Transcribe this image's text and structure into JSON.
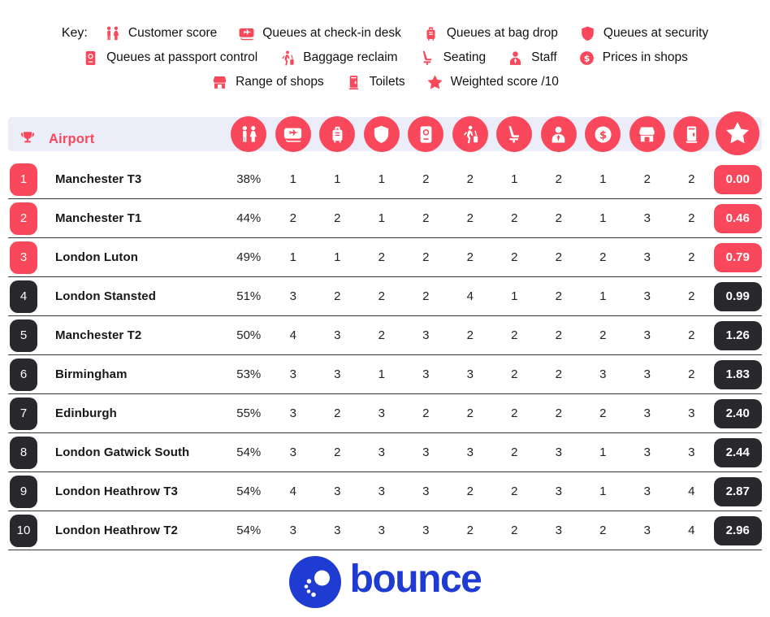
{
  "key": {
    "label": "Key:",
    "lines": [
      [
        {
          "icon": "people",
          "label": "Customer score"
        },
        {
          "icon": "boarding-pass",
          "label": "Queues at check-in desk"
        },
        {
          "icon": "suitcase",
          "label": "Queues at bag drop"
        },
        {
          "icon": "shield",
          "label": "Queues at security"
        }
      ],
      [
        {
          "icon": "passport",
          "label": "Queues at passport control"
        },
        {
          "icon": "baggage-reclaim",
          "label": "Baggage reclaim"
        },
        {
          "icon": "seat",
          "label": "Seating"
        },
        {
          "icon": "staff",
          "label": "Staff"
        },
        {
          "icon": "dollar-coin",
          "label": "Prices in shops"
        }
      ],
      [
        {
          "icon": "shop",
          "label": "Range of shops"
        },
        {
          "icon": "toilet",
          "label": "Toilets"
        },
        {
          "icon": "star",
          "label": "Weighted score /10"
        }
      ]
    ]
  },
  "table": {
    "airport_header": "Airport",
    "icon_columns": [
      "people",
      "boarding-pass",
      "suitcase",
      "shield",
      "passport",
      "baggage-reclaim",
      "seat",
      "staff",
      "dollar-coin",
      "shop",
      "toilet",
      "star"
    ],
    "rows": [
      {
        "rank": "1",
        "airport": "Manchester T3",
        "customer_score": "38%",
        "values": [
          1,
          1,
          1,
          2,
          2,
          1,
          2,
          1,
          2,
          2
        ],
        "weighted_score": "0.00",
        "highlight": true
      },
      {
        "rank": "2",
        "airport": "Manchester T1",
        "customer_score": "44%",
        "values": [
          2,
          2,
          1,
          2,
          2,
          2,
          2,
          1,
          3,
          2
        ],
        "weighted_score": "0.46",
        "highlight": true
      },
      {
        "rank": "3",
        "airport": "London Luton",
        "customer_score": "49%",
        "values": [
          1,
          1,
          2,
          2,
          2,
          2,
          2,
          2,
          3,
          2
        ],
        "weighted_score": "0.79",
        "highlight": true
      },
      {
        "rank": "4",
        "airport": "London Stansted",
        "customer_score": "51%",
        "values": [
          3,
          2,
          2,
          2,
          4,
          1,
          2,
          1,
          3,
          2
        ],
        "weighted_score": "0.99",
        "highlight": false
      },
      {
        "rank": "5",
        "airport": "Manchester T2",
        "customer_score": "50%",
        "values": [
          4,
          3,
          2,
          3,
          2,
          2,
          2,
          2,
          3,
          2
        ],
        "weighted_score": "1.26",
        "highlight": false
      },
      {
        "rank": "6",
        "airport": "Birmingham",
        "customer_score": "53%",
        "values": [
          3,
          3,
          1,
          3,
          3,
          2,
          2,
          3,
          3,
          2
        ],
        "weighted_score": "1.83",
        "highlight": false
      },
      {
        "rank": "7",
        "airport": "Edinburgh",
        "customer_score": "55%",
        "values": [
          3,
          2,
          3,
          2,
          2,
          2,
          2,
          2,
          3,
          3
        ],
        "weighted_score": "2.40",
        "highlight": false
      },
      {
        "rank": "8",
        "airport": "London Gatwick South",
        "customer_score": "54%",
        "values": [
          3,
          2,
          3,
          3,
          3,
          2,
          3,
          1,
          3,
          3
        ],
        "weighted_score": "2.44",
        "highlight": false
      },
      {
        "rank": "9",
        "airport": "London Heathrow T3",
        "customer_score": "54%",
        "values": [
          4,
          3,
          3,
          3,
          2,
          2,
          3,
          1,
          3,
          4
        ],
        "weighted_score": "2.87",
        "highlight": false
      },
      {
        "rank": "10",
        "airport": "London Heathrow T2",
        "customer_score": "54%",
        "values": [
          3,
          3,
          3,
          3,
          2,
          2,
          3,
          2,
          3,
          4
        ],
        "weighted_score": "2.96",
        "highlight": false
      }
    ]
  },
  "footer": {
    "brand": "bounce"
  },
  "colors": {
    "accent_red": "#f9485b",
    "dark_badge": "#28282d",
    "header_band": "#ebedf8",
    "brand_blue": "#1e3bd2",
    "row_line": "#35353a"
  },
  "chart_data": {
    "type": "table",
    "title": "UK airport ranking by weighted score",
    "columns": [
      "Rank",
      "Airport",
      "Customer score",
      "Queues at check-in desk",
      "Queues at bag drop",
      "Queues at security",
      "Queues at passport control",
      "Baggage reclaim",
      "Seating",
      "Staff",
      "Prices in shops",
      "Range of shops",
      "Toilets",
      "Weighted score /10"
    ],
    "rows": [
      [
        1,
        "Manchester T3",
        "38%",
        1,
        1,
        1,
        2,
        2,
        1,
        2,
        1,
        2,
        2,
        0.0
      ],
      [
        2,
        "Manchester T1",
        "44%",
        2,
        2,
        1,
        2,
        2,
        2,
        2,
        1,
        3,
        2,
        0.46
      ],
      [
        3,
        "London Luton",
        "49%",
        1,
        1,
        2,
        2,
        2,
        2,
        2,
        2,
        3,
        2,
        0.79
      ],
      [
        4,
        "London Stansted",
        "51%",
        3,
        2,
        2,
        2,
        4,
        1,
        2,
        1,
        3,
        2,
        0.99
      ],
      [
        5,
        "Manchester T2",
        "50%",
        4,
        3,
        2,
        3,
        2,
        2,
        2,
        2,
        3,
        2,
        1.26
      ],
      [
        6,
        "Birmingham",
        "53%",
        3,
        3,
        1,
        3,
        3,
        2,
        2,
        3,
        3,
        2,
        1.83
      ],
      [
        7,
        "Edinburgh",
        "55%",
        3,
        2,
        3,
        2,
        2,
        2,
        2,
        2,
        3,
        3,
        2.4
      ],
      [
        8,
        "London Gatwick South",
        "54%",
        3,
        2,
        3,
        3,
        3,
        2,
        3,
        1,
        3,
        3,
        2.44
      ],
      [
        9,
        "London Heathrow T3",
        "54%",
        4,
        3,
        3,
        3,
        2,
        2,
        3,
        1,
        3,
        4,
        2.87
      ],
      [
        10,
        "London Heathrow T2",
        "54%",
        3,
        3,
        3,
        3,
        2,
        2,
        3,
        2,
        3,
        4,
        2.96
      ]
    ]
  }
}
